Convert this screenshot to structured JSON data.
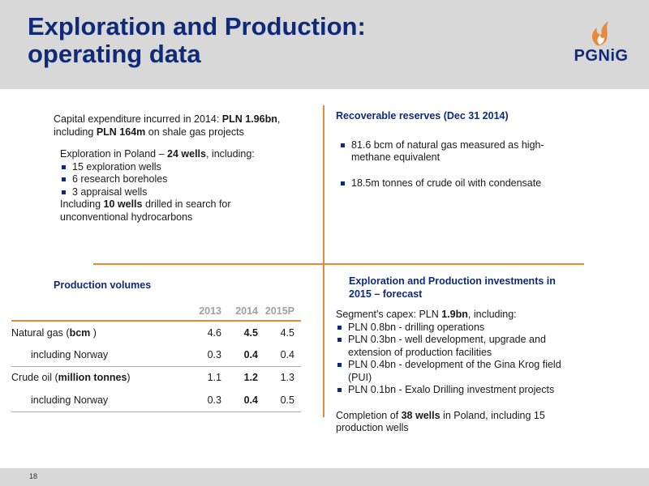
{
  "header": {
    "title_line1": "Exploration and Production:",
    "title_line2": "operating data",
    "logo_text": "PGNiG",
    "logo_icon": "flame-icon"
  },
  "capex": {
    "line1_pre": "Capital expenditure incurred in 2014: ",
    "line1_bold": "PLN 1.96bn",
    "line1_post": ",",
    "line2_pre": "including ",
    "line2_bold": "PLN 164m",
    "line2_post": "  on shale gas projects"
  },
  "exploration": {
    "intro_pre": "Exploration in Poland – ",
    "intro_bold": "24 wells",
    "intro_post": ", including:",
    "items": [
      "15 exploration wells",
      "6 research boreholes",
      "3 appraisal wells"
    ],
    "footer_pre": "Including ",
    "footer_bold": "10 wells",
    "footer_post": " drilled in search for",
    "footer_line2": "unconventional hydrocarbons"
  },
  "reserves": {
    "heading": "Recoverable reserves (Dec 31 2014)",
    "items": [
      "81.6 bcm of natural gas measured as high-methane equivalent",
      "18.5m tonnes of crude oil with condensate"
    ]
  },
  "production": {
    "heading": "Production volumes",
    "columns": [
      "2013",
      "2014",
      "2015P"
    ],
    "rows": [
      {
        "label_pre": "Natural gas (",
        "label_bold": "bcm",
        "label_post": " )",
        "values": [
          "4.6",
          "4.5",
          "4.5"
        ]
      },
      {
        "label_pre": "including Norway",
        "label_bold": "",
        "label_post": "",
        "values": [
          "0.3",
          "0.4",
          "0.4"
        ]
      },
      {
        "label_pre": "Crude oil (",
        "label_bold": "million tonnes",
        "label_post": ")",
        "values": [
          "1.1",
          "1.2",
          "1.3"
        ]
      },
      {
        "label_pre": "including Norway",
        "label_bold": "",
        "label_post": "",
        "values": [
          "0.3",
          "0.4",
          "0.5"
        ]
      }
    ]
  },
  "investments": {
    "heading_line1": "Exploration and Production investments in",
    "heading_line2": "2015 – forecast",
    "intro_pre": "Segment's capex: PLN ",
    "intro_bold": "1.9bn",
    "intro_post": ", including:",
    "items": [
      "PLN 0.8bn - drilling operations",
      "PLN 0.3bn - well development, upgrade and extension of production facilities",
      "PLN 0.4bn - development of the Gina Krog field (PUI)",
      "PLN 0.1bn - Exalo Drilling investment projects"
    ],
    "completion_pre": "Completion of ",
    "completion_bold": "38 wells",
    "completion_post": "  in Poland, including 15 production wells"
  },
  "footer": {
    "page_number": "18"
  },
  "colors": {
    "title_blue": "#0f2a78",
    "accent_orange": "#e8883a",
    "header_gray": "#d8d8d8"
  }
}
